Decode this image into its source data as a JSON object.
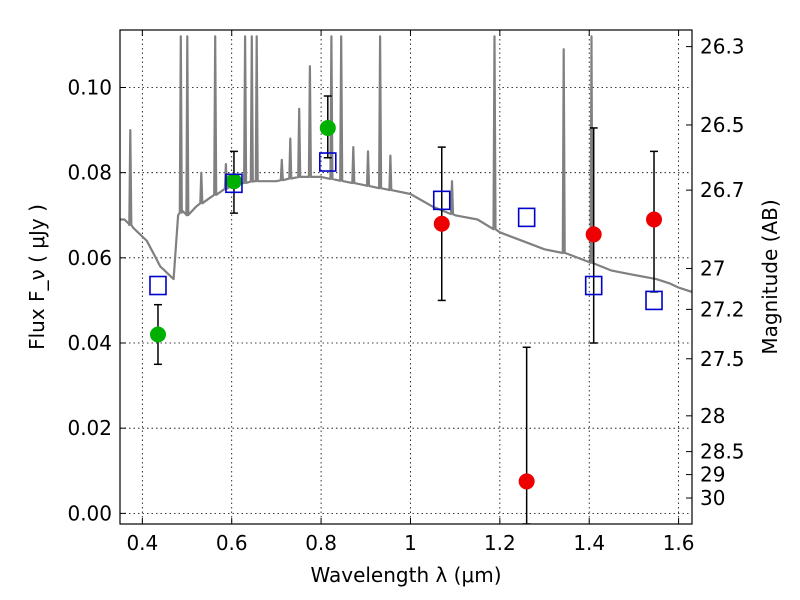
{
  "chart_data": {
    "type": "scatter",
    "title": "",
    "xlabel": "Wavelength  λ (μm)",
    "ylabel": "Flux  F_ν  ( μJy )",
    "ylabel_right": "Magnitude (AB)",
    "xlim": [
      0.35,
      1.63
    ],
    "ylim": [
      -0.0025,
      0.1135
    ],
    "xticks": [
      0.4,
      0.6,
      0.8,
      1.0,
      1.2,
      1.4,
      1.6
    ],
    "xtick_labels": [
      "0.4",
      "0.6",
      "0.8",
      "1",
      "1.2",
      "1.4",
      "1.6"
    ],
    "yticks": [
      0.0,
      0.02,
      0.04,
      0.06,
      0.08,
      0.1
    ],
    "ytick_labels": [
      "0.00",
      "0.02",
      "0.04",
      "0.06",
      "0.08",
      "0.10"
    ],
    "right_ticks": [
      {
        "label": "26.3",
        "flux": 0.1096
      },
      {
        "label": "26.5",
        "flux": 0.0912
      },
      {
        "label": "26.7",
        "flux": 0.0759
      },
      {
        "label": "27",
        "flux": 0.0575
      },
      {
        "label": "27.2",
        "flux": 0.0479
      },
      {
        "label": "27.5",
        "flux": 0.0363
      },
      {
        "label": "28",
        "flux": 0.0229
      },
      {
        "label": "28.5",
        "flux": 0.0145
      },
      {
        "label": "29",
        "flux": 0.0091
      },
      {
        "label": "30",
        "flux": 0.0036
      }
    ],
    "grid": true,
    "colors": {
      "spectrum": "#808080",
      "model_square": "#0000cc",
      "green_point": "#00b000",
      "red_point": "#ee0000",
      "errorbar": "#000000"
    },
    "series": [
      {
        "type": "line",
        "x": [
          0.35,
          0.36,
          0.37,
          0.38,
          0.39,
          0.4,
          0.41,
          0.42,
          0.43,
          0.44,
          0.45,
          0.46,
          0.47,
          0.48,
          0.49,
          0.5,
          0.52,
          0.55,
          0.6,
          0.65,
          0.7,
          0.75,
          0.8,
          0.85,
          0.9,
          0.95,
          1.0,
          1.05,
          1.1,
          1.15,
          1.2,
          1.25,
          1.3,
          1.35,
          1.4,
          1.45,
          1.5,
          1.55,
          1.58,
          1.6,
          1.63
        ],
        "y": [
          0.069,
          0.069,
          0.068,
          0.067,
          0.066,
          0.065,
          0.064,
          0.062,
          0.06,
          0.058,
          0.057,
          0.056,
          0.055,
          0.07,
          0.071,
          0.07,
          0.072,
          0.074,
          0.077,
          0.078,
          0.078,
          0.079,
          0.079,
          0.078,
          0.077,
          0.076,
          0.075,
          0.072,
          0.07,
          0.069,
          0.066,
          0.064,
          0.062,
          0.061,
          0.059,
          0.057,
          0.056,
          0.055,
          0.054,
          0.053,
          0.052
        ]
      },
      {
        "type": "squares",
        "x": [
          0.435,
          0.605,
          0.815,
          1.07,
          1.26,
          1.41,
          1.545
        ],
        "y": [
          0.0535,
          0.0775,
          0.0825,
          0.0735,
          0.0695,
          0.0535,
          0.05
        ]
      },
      {
        "type": "points",
        "color_key": "green_point",
        "x": [
          0.435,
          0.605,
          0.815
        ],
        "y": [
          0.042,
          0.078,
          0.0905
        ],
        "err_low": [
          0.035,
          0.0705,
          0.0835
        ],
        "err_high": [
          0.049,
          0.085,
          0.098
        ]
      },
      {
        "type": "points",
        "color_key": "red_point",
        "x": [
          1.07,
          1.26,
          1.41,
          1.545
        ],
        "y": [
          0.068,
          0.0075,
          0.0655,
          0.069
        ],
        "err_low": [
          0.05,
          -0.0025,
          0.04,
          0.052
        ],
        "err_high": [
          0.086,
          0.039,
          0.0905,
          0.085
        ]
      }
    ],
    "spectrum_lines": [
      {
        "x": 0.373,
        "peak": 0.09
      },
      {
        "x": 0.486,
        "peak": 0.112
      },
      {
        "x": 0.5007,
        "peak": 0.112
      },
      {
        "x": 0.532,
        "peak": 0.08
      },
      {
        "x": 0.563,
        "peak": 0.112
      },
      {
        "x": 0.587,
        "peak": 0.082
      },
      {
        "x": 0.63,
        "peak": 0.112
      },
      {
        "x": 0.645,
        "peak": 0.112
      },
      {
        "x": 0.656,
        "peak": 0.112
      },
      {
        "x": 0.712,
        "peak": 0.083
      },
      {
        "x": 0.731,
        "peak": 0.088
      },
      {
        "x": 0.751,
        "peak": 0.095
      },
      {
        "x": 0.775,
        "peak": 0.105
      },
      {
        "x": 0.823,
        "peak": 0.112
      },
      {
        "x": 0.845,
        "peak": 0.112
      },
      {
        "x": 0.872,
        "peak": 0.086
      },
      {
        "x": 0.905,
        "peak": 0.085
      },
      {
        "x": 0.932,
        "peak": 0.112
      },
      {
        "x": 0.955,
        "peak": 0.084
      },
      {
        "x": 1.093,
        "peak": 0.078
      },
      {
        "x": 1.188,
        "peak": 0.112
      },
      {
        "x": 1.343,
        "peak": 0.109
      },
      {
        "x": 1.405,
        "peak": 0.112
      }
    ]
  }
}
